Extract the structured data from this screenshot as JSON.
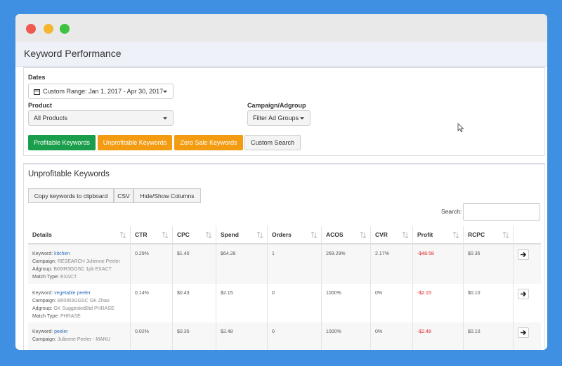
{
  "header": {
    "title": "Keyword Performance"
  },
  "filters": {
    "dates_label": "Dates",
    "date_range": "Custom Range: Jan 1, 2017 - Apr 30, 2017",
    "product_label": "Product",
    "product_value": "All Products",
    "campaign_label": "Campaign/Adgroup",
    "campaign_value": "Filter Ad Groups"
  },
  "buttons": [
    "Profitable Keywords",
    "Unprofitable Keywords",
    "Zero Sale Keywords",
    "Custom Search"
  ],
  "results": {
    "title": "Unprofitable Keywords",
    "tools": [
      "Copy keywords to clipboard",
      "CSV",
      "Hide/Show Columns"
    ],
    "search_label": "Search:"
  },
  "table": {
    "columns": [
      "Details",
      "CTR",
      "CPC",
      "Spend",
      "Orders",
      "ACOS",
      "CVR",
      "Profit",
      "RCPC"
    ],
    "detail_labels": [
      "Keyword:",
      "Campaign:",
      "Adgroup:",
      "Match Type:"
    ],
    "rows": [
      {
        "details": [
          "kitchen",
          "RESEARCH Julienne Peeler",
          "B00IR3GGSC 1pk EXACT",
          "EXACT"
        ],
        "cells": [
          "0.29%",
          "$1.40",
          "$64.28",
          "1",
          "269.29%",
          "2.17%",
          "-$48.58",
          "$0.35"
        ]
      },
      {
        "details": [
          "vegetable peeler",
          "B00IR3GGSC GK Zhao",
          "GK SuggestedBid PHRASE",
          "PHRASE"
        ],
        "cells": [
          "0.14%",
          "$0.43",
          "$2.15",
          "0",
          "1000%",
          "0%",
          "-$2.15",
          "$0.10"
        ]
      },
      {
        "details": [
          "peeler",
          "Julienne Peeler - MANU"
        ],
        "cells": [
          "0.02%",
          "$0.35",
          "$2.48",
          "0",
          "1000%",
          "0%",
          "-$2.48",
          "$0.10"
        ]
      }
    ]
  }
}
